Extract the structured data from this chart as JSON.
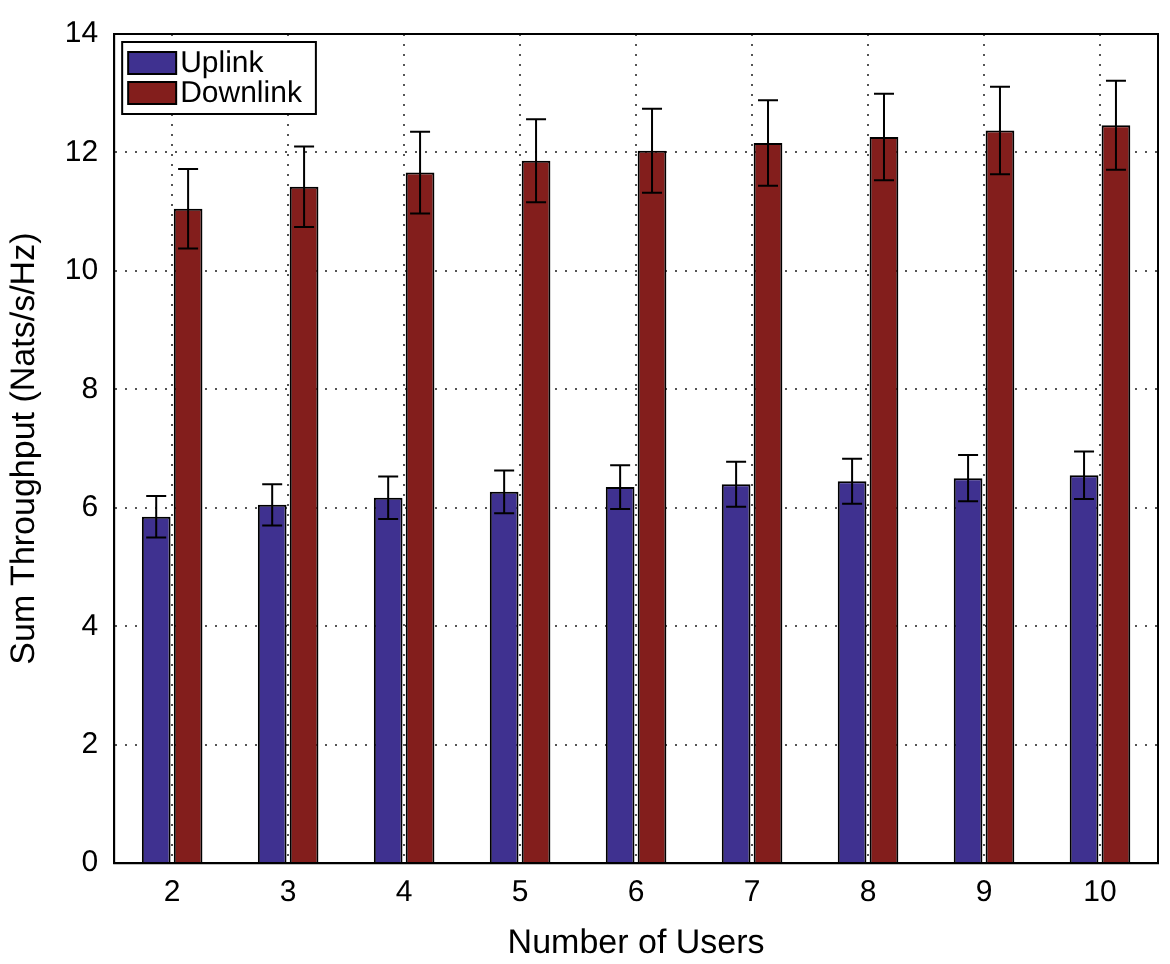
{
  "chart_data": {
    "type": "bar",
    "xlabel": "Number of Users",
    "ylabel": "Sum Throughput (Nats/s/Hz)",
    "categories": [
      "2",
      "3",
      "4",
      "5",
      "6",
      "7",
      "8",
      "9",
      "10"
    ],
    "series": [
      {
        "name": "Uplink",
        "color": "#3f3190",
        "values": [
          5.85,
          6.05,
          6.17,
          6.27,
          6.35,
          6.4,
          6.45,
          6.5,
          6.55
        ],
        "errors": [
          0.35,
          0.35,
          0.36,
          0.36,
          0.37,
          0.38,
          0.38,
          0.39,
          0.4
        ]
      },
      {
        "name": "Downlink",
        "color": "#831e1c",
        "values": [
          11.05,
          11.42,
          11.66,
          11.86,
          12.03,
          12.16,
          12.26,
          12.37,
          12.46
        ],
        "errors": [
          0.67,
          0.68,
          0.69,
          0.7,
          0.71,
          0.72,
          0.73,
          0.74,
          0.75
        ]
      }
    ],
    "ylim": [
      0,
      14
    ],
    "yticks": [
      0,
      2,
      4,
      6,
      8,
      10,
      12,
      14
    ],
    "grid": true,
    "legend": "top left"
  }
}
